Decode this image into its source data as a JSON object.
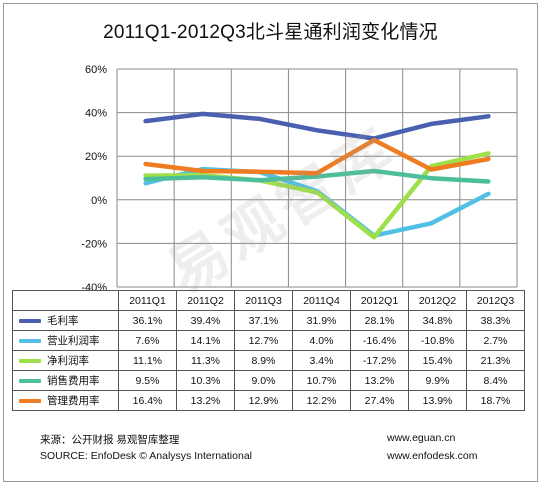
{
  "chart_data": {
    "type": "line",
    "title": "2011Q1-2012Q3北斗星通利润变化情况",
    "categories": [
      "2011Q1",
      "2011Q2",
      "2011Q3",
      "2011Q4",
      "2012Q1",
      "2012Q2",
      "2012Q3"
    ],
    "ylim": [
      -40,
      60
    ],
    "yticks": [
      -40,
      -20,
      0,
      20,
      40,
      60
    ],
    "ytick_labels": [
      "-40%",
      "-20%",
      "0%",
      "20%",
      "40%",
      "60%"
    ],
    "grid": true,
    "legend_placement": "table-left",
    "series": [
      {
        "name": "毛利率",
        "color": "#4a5fb0",
        "values": [
          36.1,
          39.4,
          37.1,
          31.9,
          28.1,
          34.8,
          38.3
        ],
        "labels": [
          "36.1%",
          "39.4%",
          "37.1%",
          "31.9%",
          "28.1%",
          "34.8%",
          "38.3%"
        ]
      },
      {
        "name": "营业利润率",
        "color": "#52c0e6",
        "values": [
          7.6,
          14.1,
          12.7,
          4.0,
          -16.4,
          -10.8,
          2.7
        ],
        "labels": [
          "7.6%",
          "14.1%",
          "12.7%",
          "4.0%",
          "-16.4%",
          "-10.8%",
          "2.7%"
        ]
      },
      {
        "name": "净利润率",
        "color": "#9ee04a",
        "values": [
          11.1,
          11.3,
          8.9,
          3.4,
          -17.2,
          15.4,
          21.3
        ],
        "labels": [
          "11.1%",
          "11.3%",
          "8.9%",
          "3.4%",
          "-17.2%",
          "15.4%",
          "21.3%"
        ]
      },
      {
        "name": "销售费用率",
        "color": "#4dbe9a",
        "values": [
          9.5,
          10.3,
          9.0,
          10.7,
          13.2,
          9.9,
          8.4
        ],
        "labels": [
          "9.5%",
          "10.3%",
          "9.0%",
          "10.7%",
          "13.2%",
          "9.9%",
          "8.4%"
        ]
      },
      {
        "name": "管理费用率",
        "color": "#f07c22",
        "values": [
          16.4,
          13.2,
          12.9,
          12.2,
          27.4,
          13.9,
          18.7
        ],
        "labels": [
          "16.4%",
          "13.2%",
          "12.9%",
          "12.2%",
          "27.4%",
          "13.9%",
          "18.7%"
        ]
      }
    ]
  },
  "footer": {
    "source_cn": "来源：公开财报 易观智库整理",
    "source_en": "SOURCE: EnfoDesk © Analysys International",
    "url1": "www.eguan.cn",
    "url2": "www.enfodesk.com"
  },
  "watermark": "易观智库"
}
